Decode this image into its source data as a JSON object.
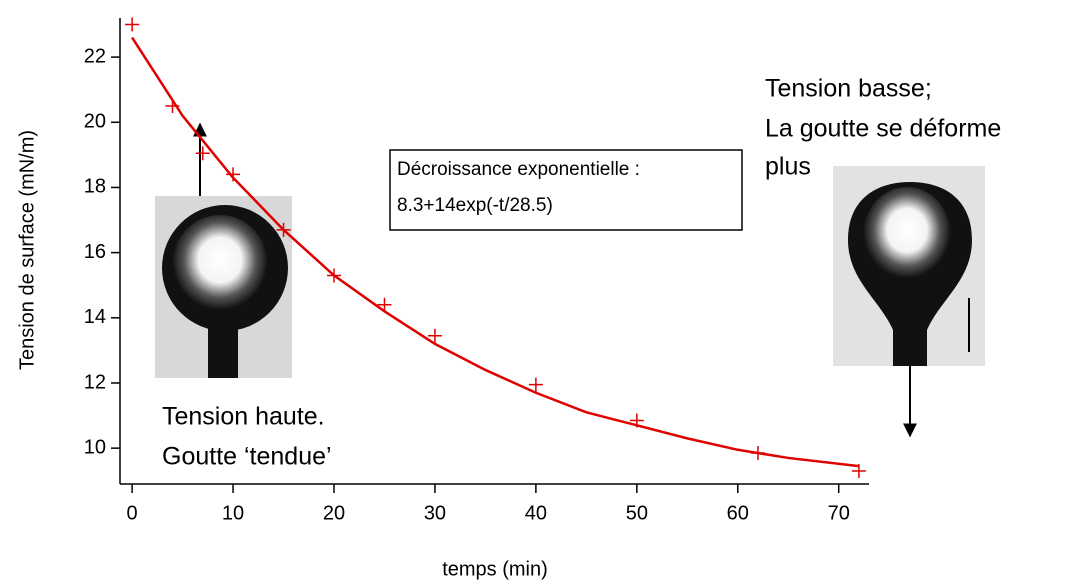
{
  "chart_data": {
    "type": "scatter",
    "xlabel": "temps (min)",
    "ylabel": "Tension de surface (mN/m)",
    "xlim": [
      -1.2,
      73
    ],
    "ylim": [
      8.9,
      23.2
    ],
    "xticks": [
      0,
      10,
      20,
      30,
      40,
      50,
      60,
      70
    ],
    "yticks": [
      10,
      12,
      14,
      16,
      18,
      20,
      22
    ],
    "series": [
      {
        "mode": "markers",
        "color": "#e00000",
        "x": [
          0,
          4,
          7,
          10,
          15,
          20,
          25,
          30,
          40,
          50,
          62,
          72
        ],
        "values": [
          23.0,
          20.5,
          19.05,
          18.4,
          16.7,
          15.3,
          14.4,
          13.45,
          11.95,
          10.85,
          9.85,
          9.3
        ]
      },
      {
        "mode": "line",
        "color": "#e00000",
        "x": [
          0,
          5,
          10,
          15,
          20,
          25,
          30,
          35,
          40,
          45,
          50,
          55,
          60,
          65,
          72
        ],
        "values": [
          22.6,
          20.2,
          18.3,
          16.7,
          15.3,
          14.2,
          13.2,
          12.4,
          11.7,
          11.1,
          10.7,
          10.3,
          9.95,
          9.7,
          9.45
        ]
      }
    ],
    "fit_box": [
      "Décroissance exponentielle :",
      "8.3+14exp(-t/28.5)"
    ],
    "note_low": [
      "Tension basse;",
      "La goutte se déforme",
      "plus"
    ],
    "note_high": [
      "Tension haute.",
      "Goutte ‘tendue’"
    ]
  }
}
